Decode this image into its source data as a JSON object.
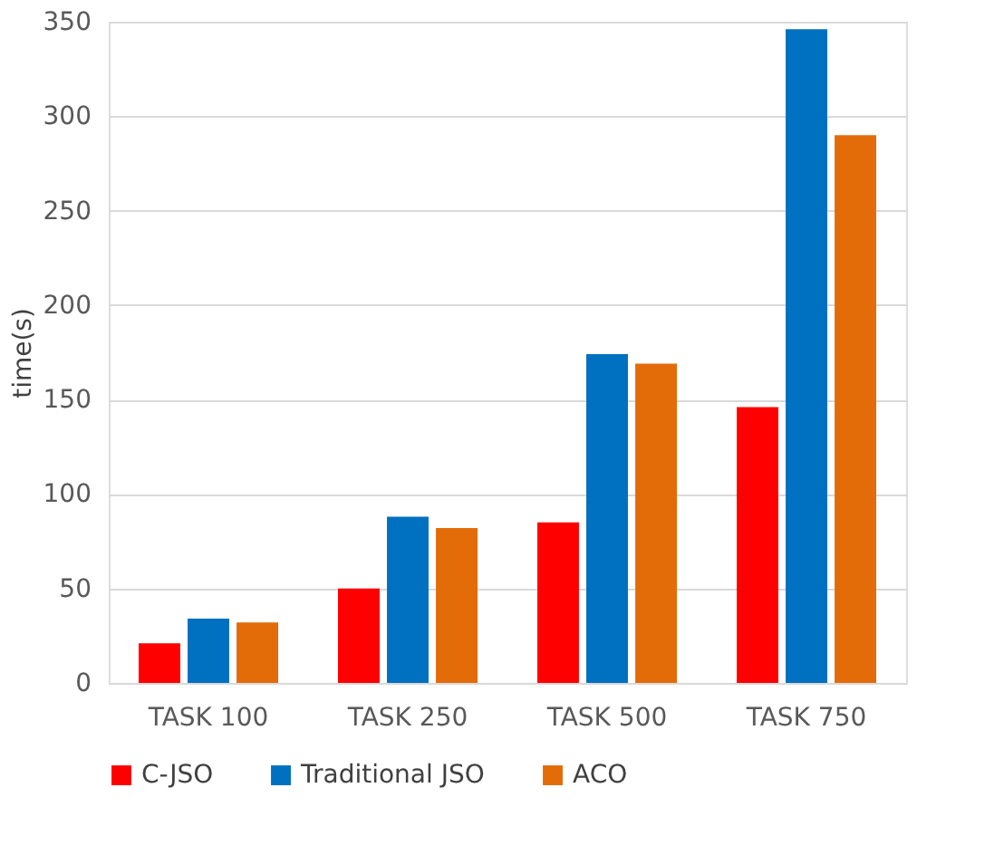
{
  "chart_data": {
    "type": "bar",
    "ylabel": "time(s)",
    "categories": [
      "TASK 100",
      "TASK 250",
      "TASK 500",
      "TASK 750"
    ],
    "series": [
      {
        "name": "C-JSO",
        "color": "#ff0000",
        "values": [
          21,
          50,
          85,
          146
        ]
      },
      {
        "name": "Traditional JSO",
        "color": "#0070c0",
        "values": [
          34,
          88,
          174,
          346
        ]
      },
      {
        "name": "ACO",
        "color": "#e36c09",
        "values": [
          32,
          82,
          169,
          290
        ]
      }
    ],
    "ylim": [
      0,
      350
    ],
    "yticks": [
      0,
      50,
      100,
      150,
      200,
      250,
      300,
      350
    ],
    "grid": "y",
    "legend": "bottom"
  }
}
